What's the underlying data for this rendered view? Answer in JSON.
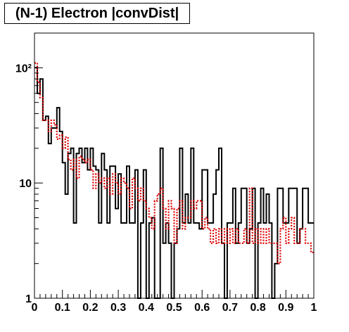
{
  "chart_data": {
    "type": "step",
    "title": "(N-1) Electron |convDist|",
    "xlabel": "",
    "ylabel": "",
    "xlim": [
      0,
      1
    ],
    "ylim": [
      1,
      200
    ],
    "y_scale": "log",
    "grid": false,
    "legend": "none",
    "x_ticks": [
      "0",
      "0.1",
      "0.2",
      "0.3",
      "0.4",
      "0.5",
      "0.6",
      "0.7",
      "0.8",
      "0.9",
      "1"
    ],
    "y_ticks": [
      {
        "value": 1,
        "label": "1"
      },
      {
        "value": 10,
        "label": "10"
      },
      {
        "value": 100,
        "label": "10²"
      }
    ],
    "bin_edges_start": 0,
    "bin_width": 0.01,
    "series": [
      {
        "color": "#000000",
        "style": "solid",
        "values": [
          100,
          60,
          80,
          35,
          38,
          22,
          30,
          30,
          45,
          28,
          15,
          8,
          18,
          20,
          4.5,
          18,
          20,
          15,
          20,
          13,
          20,
          14,
          13,
          4.5,
          18,
          13,
          4.5,
          14,
          14,
          6,
          12,
          4.5,
          4.5,
          14,
          4.5,
          4.5,
          13,
          1,
          4.5,
          13,
          1,
          4.5,
          5,
          1,
          1,
          20,
          3,
          4.5,
          3,
          1,
          3,
          4,
          20,
          4.5,
          8,
          4.5,
          20,
          4.5,
          4.5,
          4,
          13,
          13,
          4.5,
          4.5,
          8,
          13,
          20,
          3,
          1,
          4.5,
          4.5,
          9,
          3,
          4.5,
          9,
          9,
          3,
          4,
          9,
          1,
          4.5,
          9,
          4.5,
          8,
          4.5,
          1,
          2,
          9,
          9,
          4.5,
          4.5,
          9,
          9,
          9,
          3,
          4,
          9,
          9,
          4.5,
          4.5
        ]
      },
      {
        "color": "#dd0000",
        "style": "dotted",
        "values": [
          110,
          75,
          55,
          35,
          35,
          28,
          35,
          32,
          24,
          26,
          20,
          25,
          16,
          13,
          16,
          11,
          17,
          16,
          15,
          16,
          13,
          9,
          12,
          10,
          11,
          9,
          11,
          8,
          12,
          10,
          8,
          11,
          10,
          9,
          6,
          11,
          9,
          7,
          9,
          7,
          6,
          5,
          4,
          7,
          8,
          9,
          6,
          4,
          7,
          6,
          3,
          6,
          7,
          4,
          5,
          5,
          7,
          6,
          7,
          7,
          4,
          5,
          4,
          3,
          4,
          3,
          4,
          3,
          4,
          3,
          4,
          3,
          4,
          3,
          3,
          4,
          3,
          9,
          3,
          4,
          3,
          4,
          3,
          4,
          3,
          3,
          3,
          2,
          4,
          5,
          3,
          4,
          5,
          3,
          3,
          4,
          4,
          3,
          3,
          2.5
        ]
      }
    ]
  }
}
